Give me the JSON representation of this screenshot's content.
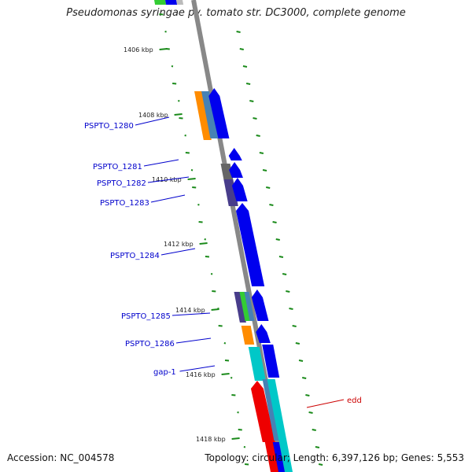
{
  "title": "Pseudomonas syringae pv. tomato str. DC3000, complete genome",
  "accession": "Accession: NC_004578",
  "summary": "Topology: circular; Length: 6,397,126 bp; Genes: 5,553",
  "ticks": [
    "1406 kbp",
    "1408 kbp",
    "1410 kbp",
    "1412 kbp",
    "1414 kbp",
    "1416 kbp",
    "1418 kbp"
  ],
  "genes": [
    {
      "name": "PSPTO_1280",
      "color": "#0000cc"
    },
    {
      "name": "PSPTO_1281",
      "color": "#0000cc"
    },
    {
      "name": "PSPTO_1282",
      "color": "#0000cc"
    },
    {
      "name": "PSPTO_1283",
      "color": "#0000cc"
    },
    {
      "name": "PSPTO_1284",
      "color": "#0000cc"
    },
    {
      "name": "PSPTO_1285",
      "color": "#0000cc"
    },
    {
      "name": "PSPTO_1286",
      "color": "#0000cc"
    },
    {
      "name": "gap-1",
      "color": "#0000cc"
    },
    {
      "name": "edd",
      "color": "#cc0000"
    }
  ],
  "colors": {
    "cds": "#0000ee",
    "orange": "#ff8c00",
    "steel": "#4682b4",
    "cyan": "#00c8c8",
    "red": "#ee0000",
    "gray": "#666666",
    "slate": "#483d8b",
    "green": "#33cc33",
    "backbone": "#888888",
    "ruler": "#1a8a1a"
  }
}
